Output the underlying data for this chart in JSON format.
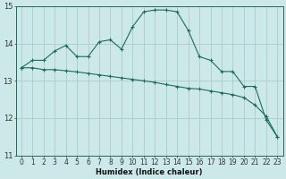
{
  "xlabel": "Humidex (Indice chaleur)",
  "bg_color": "#cce8e8",
  "grid_color": "#aacccc",
  "line_color": "#1e6b5e",
  "x_values": [
    0,
    1,
    2,
    3,
    4,
    5,
    6,
    7,
    8,
    9,
    10,
    11,
    12,
    13,
    14,
    15,
    16,
    17,
    18,
    19,
    20,
    21,
    22,
    23
  ],
  "line1_y": [
    13.35,
    13.55,
    13.55,
    13.8,
    13.95,
    13.65,
    13.65,
    14.05,
    14.1,
    13.85,
    14.45,
    14.85,
    14.9,
    14.9,
    14.85,
    14.35,
    13.65,
    13.55,
    13.25,
    13.25,
    12.85,
    12.85,
    11.95,
    11.5
  ],
  "line2_y": [
    13.35,
    13.35,
    13.3,
    13.3,
    13.27,
    13.24,
    13.2,
    13.16,
    13.12,
    13.08,
    13.04,
    13.0,
    12.96,
    12.9,
    12.85,
    12.8,
    12.78,
    12.73,
    12.68,
    12.63,
    12.55,
    12.35,
    12.05,
    11.5
  ],
  "ylim": [
    11,
    15
  ],
  "xlim_min": -0.5,
  "xlim_max": 23.5,
  "yticks": [
    11,
    12,
    13,
    14,
    15
  ],
  "xticks": [
    0,
    1,
    2,
    3,
    4,
    5,
    6,
    7,
    8,
    9,
    10,
    11,
    12,
    13,
    14,
    15,
    16,
    17,
    18,
    19,
    20,
    21,
    22,
    23
  ],
  "xlabel_fontsize": 6,
  "tick_fontsize": 5.5,
  "ytick_fontsize": 6
}
